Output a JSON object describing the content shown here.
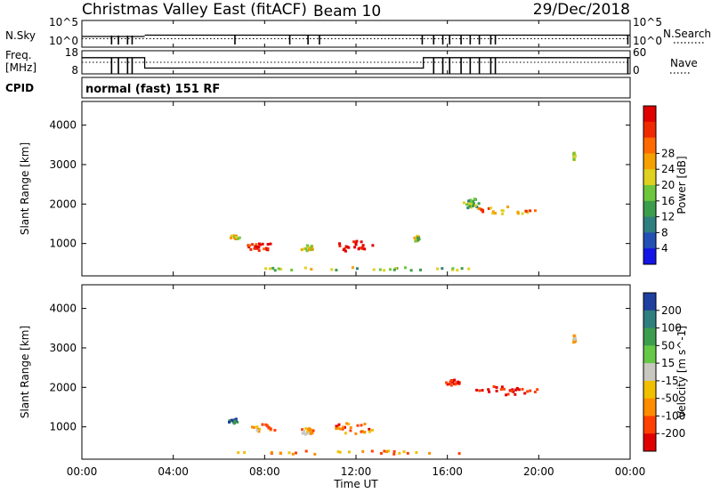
{
  "header": {
    "station": "Christmas Valley East (fitACF)",
    "beam": "Beam 10",
    "date": "29/Dec/2018"
  },
  "left_labels": {
    "nsky": "N.Sky",
    "freq_line1": "Freq.",
    "freq_line2": "[MHz]",
    "cpid": "CPID"
  },
  "right_labels": {
    "nsearch": "N.Search",
    "nave": "Nave"
  },
  "mode_text": "normal (fast) 151 RF",
  "chart_data": [
    {
      "name": "noise",
      "type": "line",
      "left_ticks": [
        "10^5",
        "10^0"
      ],
      "right_ticks": [
        "10^5",
        "10^0"
      ],
      "ylabel_left": "N.Sky",
      "ylabel_right": "N.Search",
      "xlim": [
        0,
        24
      ],
      "dips": [
        1.3,
        1.6,
        2.0,
        2.2,
        6.7,
        9.1,
        9.9,
        10.4,
        14.9,
        15.4,
        15.8,
        16.1,
        16.6,
        17.0,
        17.4,
        17.9,
        18.1,
        23.9
      ]
    },
    {
      "name": "frequency",
      "type": "line",
      "left_ticks": [
        "18",
        "8"
      ],
      "right_ticks": [
        "60",
        "0"
      ],
      "ylabel_left": "Freq. [MHz]",
      "ylabel_right": "Nave",
      "xlim": [
        0,
        24
      ],
      "step_down_at": 2.75,
      "step_up_at": 14.95,
      "high_level": 15,
      "low_level": 10.5
    },
    {
      "name": "power",
      "type": "heatmap",
      "ylabel": "Slant Range [km]",
      "yticks": [
        1000,
        2000,
        3000,
        4000
      ],
      "ylim": [
        180,
        4600
      ],
      "xlim": [
        0,
        24
      ],
      "colorbar_label": "Power [dB]",
      "colorbar_ticks": [
        4,
        8,
        12,
        16,
        20,
        24,
        28
      ],
      "colorbar_colors": [
        "#1414e6",
        "#2350b4",
        "#2f7f7f",
        "#3c9d4d",
        "#6ec63c",
        "#e0d020",
        "#f5a000",
        "#ff6a00",
        "#f02a00",
        "#e00000"
      ],
      "blobs": [
        {
          "t": 7.8,
          "r": 950,
          "dt": 1.4,
          "dr": 200,
          "level": 0.9
        },
        {
          "t": 6.6,
          "r": 1180,
          "dt": 0.5,
          "dr": 130,
          "level": 0.6
        },
        {
          "t": 11.9,
          "r": 950,
          "dt": 1.8,
          "dr": 300,
          "level": 0.95
        },
        {
          "t": 9.8,
          "r": 920,
          "dt": 0.6,
          "dr": 160,
          "level": 0.55
        },
        {
          "t": 14.6,
          "r": 1150,
          "dt": 0.3,
          "dr": 150,
          "level": 0.45
        },
        {
          "t": 18.6,
          "r": 1880,
          "dt": 2.8,
          "dr": 200,
          "level": 0.7
        },
        {
          "t": 17.0,
          "r": 2050,
          "dt": 0.7,
          "dr": 260,
          "level": 0.4
        },
        {
          "t": 21.5,
          "r": 3250,
          "dt": 0.12,
          "dr": 200,
          "level": 0.55
        },
        {
          "t": 12.0,
          "r": 380,
          "dt": 10.5,
          "dr": 90,
          "level": 0.45
        }
      ]
    },
    {
      "name": "velocity",
      "type": "heatmap",
      "ylabel": "Slant Range [km]",
      "yticks": [
        1000,
        2000,
        3000,
        4000
      ],
      "ylim": [
        180,
        4600
      ],
      "xlim": [
        0,
        24
      ],
      "colorbar_label": "Velocity [m s^-1]",
      "colorbar_ticks": [
        200,
        100,
        50,
        15,
        -15,
        -50,
        -100,
        -200
      ],
      "colorbar_colors": [
        "#1e3fa0",
        "#2f7f7f",
        "#3c9d4d",
        "#66c845",
        "#c8c8c0",
        "#f0c000",
        "#ff8c00",
        "#ff4000",
        "#e00000"
      ],
      "blobs": [
        {
          "t": 7.8,
          "r": 1000,
          "dt": 1.4,
          "dr": 200,
          "level": 0.7
        },
        {
          "t": 6.6,
          "r": 1180,
          "dt": 0.5,
          "dr": 130,
          "level": 0.15
        },
        {
          "t": 11.9,
          "r": 1000,
          "dt": 1.8,
          "dr": 300,
          "level": 0.75
        },
        {
          "t": 9.8,
          "r": 920,
          "dt": 0.6,
          "dr": 160,
          "level": 0.65
        },
        {
          "t": 18.6,
          "r": 1950,
          "dt": 2.8,
          "dr": 230,
          "level": 0.95
        },
        {
          "t": 16.2,
          "r": 2150,
          "dt": 0.6,
          "dr": 150,
          "level": 0.95
        },
        {
          "t": 21.5,
          "r": 3250,
          "dt": 0.12,
          "dr": 200,
          "level": 0.6
        },
        {
          "t": 12.0,
          "r": 380,
          "dt": 10.5,
          "dr": 90,
          "level": 0.72
        }
      ]
    }
  ],
  "xticks": [
    "00:00",
    "04:00",
    "08:00",
    "12:00",
    "16:00",
    "20:00",
    "00:00"
  ],
  "xlabel": "Time UT"
}
